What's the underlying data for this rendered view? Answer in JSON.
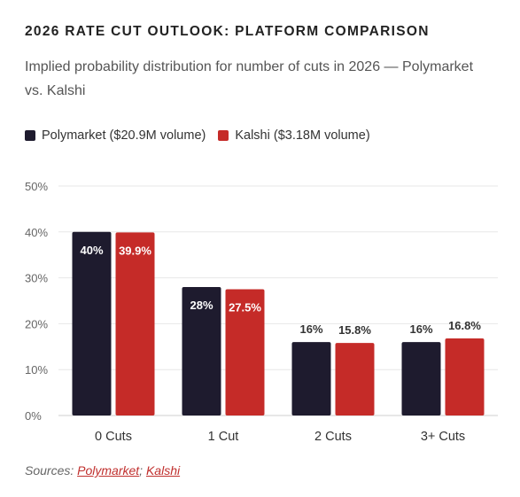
{
  "title": "2026 RATE CUT OUTLOOK: PLATFORM COMPARISON",
  "subtitle": "Implied probability distribution for number of cuts in 2026 — Polymarket vs. Kalshi",
  "colors": {
    "polymarket": "#1e1b2e",
    "kalshi": "#c52b28"
  },
  "chart_data": {
    "type": "bar",
    "categories": [
      "0 Cuts",
      "1 Cut",
      "2 Cuts",
      "3+ Cuts"
    ],
    "series": [
      {
        "name": "Polymarket ($20.9M volume)",
        "values": [
          40,
          28,
          16,
          16
        ],
        "labels": [
          "40%",
          "28%",
          "16%",
          "16%"
        ]
      },
      {
        "name": "Kalshi ($3.18M volume)",
        "values": [
          39.9,
          27.5,
          15.8,
          16.8
        ],
        "labels": [
          "39.9%",
          "27.5%",
          "15.8%",
          "16.8%"
        ]
      }
    ],
    "ylim": [
      0,
      50
    ],
    "yticks": [
      "0%",
      "10%",
      "20%",
      "30%",
      "40%",
      "50%"
    ],
    "grid": true,
    "legend": "top-left"
  },
  "sources": {
    "prefix": "Sources: ",
    "links": [
      "Polymarket",
      "Kalshi"
    ],
    "separator": "; "
  }
}
